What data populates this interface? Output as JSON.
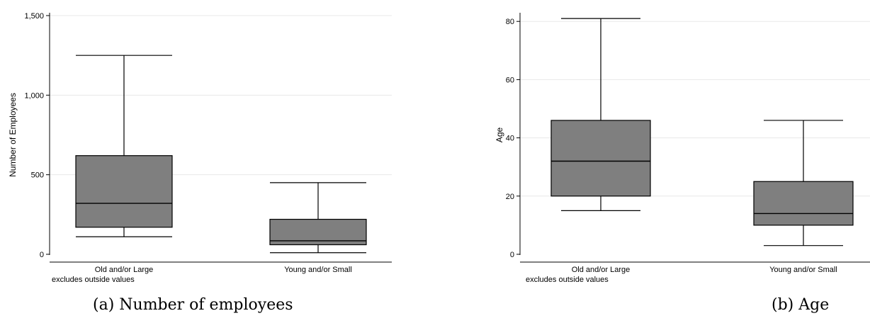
{
  "chart_data": [
    {
      "type": "box",
      "caption": "(a) Number of employees",
      "ylabel": "Number of Employees",
      "ylim": [
        0,
        1500
      ],
      "yticks": [
        0,
        500,
        1000,
        1500
      ],
      "ytick_labels": [
        "0",
        "500",
        "1,000",
        "1,500"
      ],
      "grid": true,
      "note": "excludes outside values",
      "categories": [
        "Old and/or Large",
        "Young and/or Small"
      ],
      "boxes": [
        {
          "category": "Old and/or Large",
          "whisker_low": 110,
          "q1": 170,
          "median": 320,
          "q3": 620,
          "whisker_high": 1250
        },
        {
          "category": "Young and/or Small",
          "whisker_low": 10,
          "q1": 60,
          "median": 85,
          "q3": 220,
          "whisker_high": 450
        }
      ]
    },
    {
      "type": "box",
      "caption": "(b) Age",
      "ylabel": "Age",
      "ylim": [
        0,
        82
      ],
      "yticks": [
        0,
        20,
        40,
        60,
        80
      ],
      "ytick_labels": [
        "0",
        "20",
        "40",
        "60",
        "80"
      ],
      "grid": true,
      "note": "excludes outside values",
      "categories": [
        "Old and/or Large",
        "Young and/or Small"
      ],
      "boxes": [
        {
          "category": "Old and/or Large",
          "whisker_low": 15,
          "q1": 20,
          "median": 32,
          "q3": 46,
          "whisker_high": 81
        },
        {
          "category": "Young and/or Small",
          "whisker_low": 3,
          "q1": 10,
          "median": 14,
          "q3": 25,
          "whisker_high": 46
        }
      ]
    }
  ],
  "style": {
    "box_fill": "#7f7f7f",
    "line_color": "#000000",
    "grid_color": "#e8e8e8"
  }
}
